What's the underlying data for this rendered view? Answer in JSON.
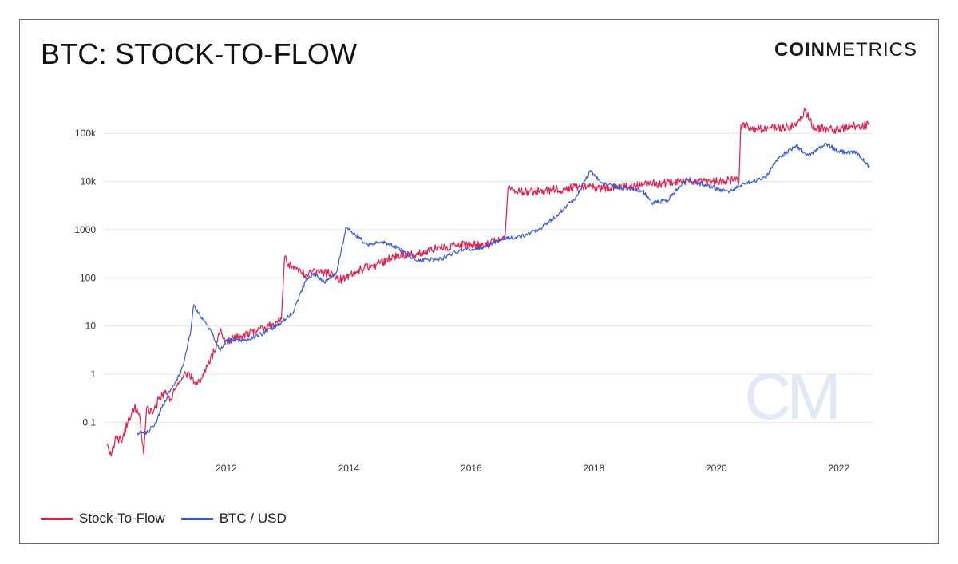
{
  "title": "BTC: STOCK-TO-FLOW",
  "brand": {
    "bold": "COIN",
    "regular": "METRICS"
  },
  "watermark": "CM",
  "colors": {
    "stock_to_flow": "#e0204f",
    "btc_usd": "#3b5bd6",
    "grid": "#e6e6e6",
    "axis_text": "#333333"
  },
  "legend": [
    {
      "label": "Stock-To-Flow",
      "color": "#e0204f"
    },
    {
      "label": "BTC / USD",
      "color": "#3b5bd6"
    }
  ],
  "chart_data": {
    "type": "line",
    "title": "BTC: STOCK-TO-FLOW",
    "y_scale": "log",
    "y_ticks": [
      {
        "value": 0.1,
        "label": "0.1"
      },
      {
        "value": 1,
        "label": "1"
      },
      {
        "value": 10,
        "label": "10"
      },
      {
        "value": 100,
        "label": "100"
      },
      {
        "value": 1000,
        "label": "1000"
      },
      {
        "value": 10000,
        "label": "10k"
      },
      {
        "value": 100000,
        "label": "100k"
      }
    ],
    "x_ticks": [
      {
        "value": 2012,
        "label": "2012"
      },
      {
        "value": 2014,
        "label": "2014"
      },
      {
        "value": 2016,
        "label": "2016"
      },
      {
        "value": 2018,
        "label": "2018"
      },
      {
        "value": 2020,
        "label": "2020"
      },
      {
        "value": 2022,
        "label": "2022"
      }
    ],
    "xlim": [
      2010.0,
      2022.55
    ],
    "ylim": [
      0.012,
      500000
    ],
    "grid": "horizontal",
    "legend_position": "bottom-left",
    "series": [
      {
        "name": "Stock-To-Flow",
        "color": "#e0204f",
        "points": [
          [
            2010.05,
            0.035
          ],
          [
            2010.12,
            0.02
          ],
          [
            2010.2,
            0.05
          ],
          [
            2010.3,
            0.04
          ],
          [
            2010.4,
            0.12
          ],
          [
            2010.5,
            0.2
          ],
          [
            2010.58,
            0.15
          ],
          [
            2010.65,
            0.022
          ],
          [
            2010.7,
            0.2
          ],
          [
            2010.8,
            0.15
          ],
          [
            2010.9,
            0.3
          ],
          [
            2011.0,
            0.4
          ],
          [
            2011.1,
            0.3
          ],
          [
            2011.2,
            0.6
          ],
          [
            2011.3,
            0.9
          ],
          [
            2011.4,
            1.0
          ],
          [
            2011.5,
            0.6
          ],
          [
            2011.6,
            0.8
          ],
          [
            2011.7,
            1.5
          ],
          [
            2011.8,
            3.0
          ],
          [
            2011.9,
            8.0
          ],
          [
            2012.0,
            5.0
          ],
          [
            2012.2,
            6.0
          ],
          [
            2012.5,
            8.0
          ],
          [
            2012.8,
            11
          ],
          [
            2012.9,
            14
          ],
          [
            2012.95,
            260
          ],
          [
            2013.1,
            150
          ],
          [
            2013.3,
            120
          ],
          [
            2013.5,
            140
          ],
          [
            2013.7,
            120
          ],
          [
            2013.9,
            90
          ],
          [
            2014.2,
            150
          ],
          [
            2014.5,
            200
          ],
          [
            2014.8,
            300
          ],
          [
            2015.1,
            320
          ],
          [
            2015.4,
            400
          ],
          [
            2015.7,
            450
          ],
          [
            2016.0,
            500
          ],
          [
            2016.2,
            450
          ],
          [
            2016.4,
            600
          ],
          [
            2016.55,
            700
          ],
          [
            2016.6,
            7500
          ],
          [
            2016.9,
            6000
          ],
          [
            2017.2,
            6500
          ],
          [
            2017.5,
            7000
          ],
          [
            2017.8,
            8000
          ],
          [
            2018.1,
            7000
          ],
          [
            2018.4,
            7500
          ],
          [
            2018.7,
            8000
          ],
          [
            2019.0,
            9000
          ],
          [
            2019.3,
            9500
          ],
          [
            2019.6,
            10000
          ],
          [
            2019.9,
            9500
          ],
          [
            2020.2,
            11000
          ],
          [
            2020.37,
            10000
          ],
          [
            2020.4,
            150000
          ],
          [
            2020.7,
            120000
          ],
          [
            2021.0,
            130000
          ],
          [
            2021.3,
            140000
          ],
          [
            2021.45,
            300000
          ],
          [
            2021.6,
            130000
          ],
          [
            2021.9,
            120000
          ],
          [
            2022.2,
            140000
          ],
          [
            2022.5,
            150000
          ]
        ]
      },
      {
        "name": "BTC / USD",
        "color": "#3b5bd6",
        "points": [
          [
            2010.55,
            0.06
          ],
          [
            2010.7,
            0.06
          ],
          [
            2010.85,
            0.1
          ],
          [
            2010.95,
            0.2
          ],
          [
            2011.1,
            0.5
          ],
          [
            2011.25,
            1.0
          ],
          [
            2011.35,
            3.0
          ],
          [
            2011.42,
            8.0
          ],
          [
            2011.47,
            28
          ],
          [
            2011.6,
            14
          ],
          [
            2011.75,
            8.0
          ],
          [
            2011.9,
            3.0
          ],
          [
            2012.0,
            5.0
          ],
          [
            2012.3,
            5.0
          ],
          [
            2012.6,
            7.0
          ],
          [
            2012.9,
            12
          ],
          [
            2013.1,
            20
          ],
          [
            2013.3,
            90
          ],
          [
            2013.45,
            120
          ],
          [
            2013.6,
            80
          ],
          [
            2013.8,
            130
          ],
          [
            2013.9,
            500
          ],
          [
            2013.95,
            1100
          ],
          [
            2014.1,
            800
          ],
          [
            2014.3,
            500
          ],
          [
            2014.6,
            550
          ],
          [
            2014.9,
            350
          ],
          [
            2015.1,
            230
          ],
          [
            2015.5,
            250
          ],
          [
            2015.9,
            400
          ],
          [
            2016.2,
            420
          ],
          [
            2016.5,
            650
          ],
          [
            2016.8,
            700
          ],
          [
            2017.1,
            1000
          ],
          [
            2017.4,
            2000
          ],
          [
            2017.7,
            4500
          ],
          [
            2017.95,
            17000
          ],
          [
            2018.1,
            10000
          ],
          [
            2018.4,
            7500
          ],
          [
            2018.8,
            6400
          ],
          [
            2018.95,
            3600
          ],
          [
            2019.2,
            4000
          ],
          [
            2019.5,
            11000
          ],
          [
            2019.8,
            8500
          ],
          [
            2020.2,
            6000
          ],
          [
            2020.5,
            9500
          ],
          [
            2020.8,
            12000
          ],
          [
            2021.0,
            30000
          ],
          [
            2021.3,
            55000
          ],
          [
            2021.5,
            35000
          ],
          [
            2021.8,
            60000
          ],
          [
            2022.0,
            42000
          ],
          [
            2022.3,
            40000
          ],
          [
            2022.5,
            20000
          ]
        ]
      }
    ]
  }
}
